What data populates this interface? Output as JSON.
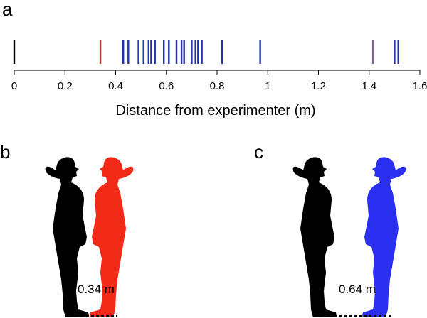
{
  "panels": {
    "a": "a",
    "b": "b",
    "c": "c"
  },
  "chart_data": {
    "type": "scatter",
    "xlabel": "Distance from experimenter (m)",
    "ylabel": "",
    "xlim": [
      0,
      1.6
    ],
    "xticks": [
      "0",
      "0.2",
      "0.4",
      "0.6",
      "0.8",
      "1",
      "1.2",
      "1.4",
      "1.6"
    ],
    "tick_values": [
      0,
      0.2,
      0.4,
      0.6,
      0.8,
      1.0,
      1.2,
      1.4,
      1.6
    ],
    "grid": false,
    "marks": [
      {
        "x": 0.0,
        "color": "#000000"
      },
      {
        "x": 0.34,
        "color": "#b03a2e"
      },
      {
        "x": 0.43,
        "color": "#2233a8"
      },
      {
        "x": 0.45,
        "color": "#2233a8"
      },
      {
        "x": 0.49,
        "color": "#2233a8"
      },
      {
        "x": 0.51,
        "color": "#2233a8"
      },
      {
        "x": 0.53,
        "color": "#2233a8"
      },
      {
        "x": 0.54,
        "color": "#2233a8"
      },
      {
        "x": 0.555,
        "color": "#2233a8"
      },
      {
        "x": 0.59,
        "color": "#2233a8"
      },
      {
        "x": 0.61,
        "color": "#2233a8"
      },
      {
        "x": 0.64,
        "color": "#2233a8"
      },
      {
        "x": 0.66,
        "color": "#2233a8"
      },
      {
        "x": 0.67,
        "color": "#2233a8"
      },
      {
        "x": 0.7,
        "color": "#2233a8"
      },
      {
        "x": 0.715,
        "color": "#2233a8"
      },
      {
        "x": 0.725,
        "color": "#2233a8"
      },
      {
        "x": 0.74,
        "color": "#2233a8"
      },
      {
        "x": 0.82,
        "color": "#2233a8"
      },
      {
        "x": 0.97,
        "color": "#2233a8"
      },
      {
        "x": 1.415,
        "color": "#8060b0"
      },
      {
        "x": 1.5,
        "color": "#2233a8"
      },
      {
        "x": 1.515,
        "color": "#2233a8"
      }
    ]
  },
  "illustrations": {
    "b": {
      "distance_label": "0.34 m",
      "experimenter_color": "#000000",
      "participant_color": "#f02a16"
    },
    "c": {
      "distance_label": "0.64 m",
      "experimenter_color": "#000000",
      "participant_color": "#2a2ff0"
    }
  }
}
